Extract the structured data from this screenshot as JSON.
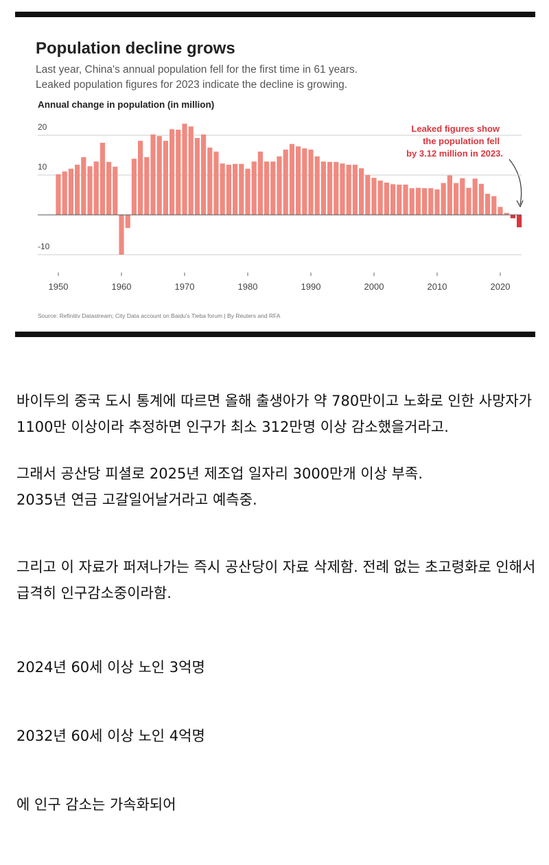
{
  "chart_data": {
    "type": "bar",
    "title": "Population decline grows",
    "subtitle": [
      "Last year, China's annual population fell for the first time in 61 years.",
      "Leaked population figures for 2023 indicate the decline is growing."
    ],
    "y_label": "Annual change in population (in million)",
    "annotation": [
      "Leaked figures show",
      "the population fell",
      "by 3.12 million in 2023."
    ],
    "source": "Source: Refinitiv Datastream; City Data account on Baidu's Tieba forum | By Reuters and RFA",
    "x": [
      1950,
      1951,
      1952,
      1953,
      1954,
      1955,
      1956,
      1957,
      1958,
      1959,
      1960,
      1961,
      1962,
      1963,
      1964,
      1965,
      1966,
      1967,
      1968,
      1969,
      1970,
      1971,
      1972,
      1973,
      1974,
      1975,
      1976,
      1977,
      1978,
      1979,
      1980,
      1981,
      1982,
      1983,
      1984,
      1985,
      1986,
      1987,
      1988,
      1989,
      1990,
      1991,
      1992,
      1993,
      1994,
      1995,
      1996,
      1997,
      1998,
      1999,
      2000,
      2001,
      2002,
      2003,
      2004,
      2005,
      2006,
      2007,
      2008,
      2009,
      2010,
      2011,
      2012,
      2013,
      2014,
      2015,
      2016,
      2017,
      2018,
      2019,
      2020,
      2021,
      2022,
      2023
    ],
    "values": [
      10.2,
      10.9,
      11.6,
      12.6,
      14.5,
      12.2,
      13.4,
      18.1,
      13.3,
      12.1,
      -10.0,
      -3.3,
      14.1,
      18.6,
      14.5,
      20.2,
      19.8,
      18.6,
      21.5,
      21.4,
      22.9,
      22.2,
      19.3,
      20.2,
      16.9,
      15.9,
      12.9,
      12.6,
      12.8,
      12.8,
      11.6,
      13.4,
      15.9,
      13.4,
      13.4,
      14.7,
      16.4,
      17.8,
      17.2,
      16.7,
      16.4,
      14.7,
      13.4,
      13.3,
      13.3,
      12.9,
      12.6,
      12.6,
      11.7,
      10.0,
      9.3,
      8.6,
      8.1,
      7.7,
      7.6,
      7.6,
      6.7,
      6.8,
      6.7,
      6.7,
      6.4,
      8.0,
      9.9,
      8.0,
      9.2,
      6.8,
      9.1,
      7.8,
      5.3,
      4.7,
      2.0,
      0.5,
      -0.85,
      -3.12
    ],
    "color": "#f08a80",
    "highlight_color": "#d9363e",
    "highlight_x": [
      2022,
      2023
    ],
    "xlim": [
      1947,
      2026
    ],
    "xticks": [
      1950,
      1960,
      1970,
      1980,
      1990,
      2000,
      2010,
      2020
    ],
    "ylim": [
      -11,
      24
    ],
    "yticks": [
      -10,
      10,
      20
    ],
    "grid": true
  },
  "post": {
    "paragraphs": [
      [
        "바이두의 중국 도시 통계에 따르면 올해 출생아가 약 780만이고 노화로 인한 사망자가 1100만 이상이라 추정하면 인구가 최소 312만명 이상 감소했을거라고."
      ],
      [
        "그래서 공산당 피셜로 2025년 제조업 일자리 3000만개 이상 부족.",
        "2035년 연금 고갈일어날거라고 예측중."
      ],
      [
        "그리고 이 자료가 퍼져나가는 즉시 공산당이 자료 삭제함. 전례 없는 초고령화로 인해서 급격히 인구감소중이라함."
      ],
      [
        "2024년 60세 이상 노인 3억명"
      ],
      [
        "2032년 60세 이상 노인 4억명"
      ],
      [
        "에 인구 감소는 가속화되어"
      ]
    ]
  }
}
